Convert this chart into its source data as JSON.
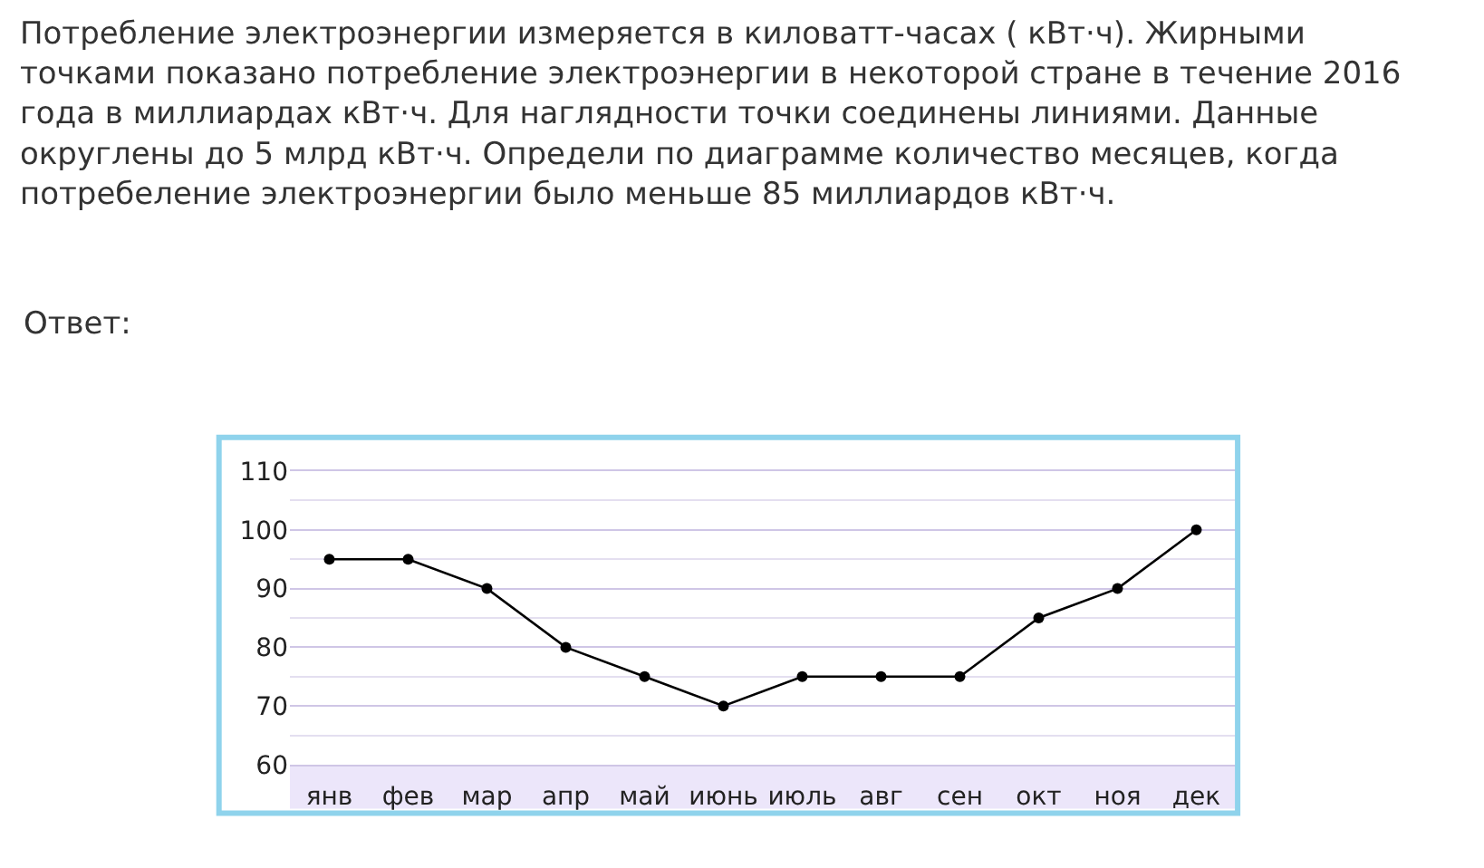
{
  "chart_data": {
    "type": "line",
    "title": "Потребление электроэнергии измеряется в киловатт-часах ( кВт·ч). Жирными\nточками показано потребление электроэнергии в некоторой стране в течение 2016\nгода в миллиардах кВт·ч. Для наглядности точки соединены линиями. Данные\nокруглены до 5 млрд кВт·ч. Определи по диаграмме количество месяцев, когда\nпотребеление электроэнергии было меньше 85 миллиардов кВт·ч.",
    "annotations": [
      "Ответ:"
    ],
    "categories": [
      "янв",
      "фев",
      "мар",
      "апр",
      "май",
      "июнь",
      "июль",
      "авг",
      "сен",
      "окт",
      "ноя",
      "дек"
    ],
    "series": [
      {
        "color": "#000000",
        "values": [
          95,
          95,
          90,
          80,
          75,
          70,
          75,
          75,
          75,
          85,
          90,
          100
        ]
      }
    ],
    "ylim": [
      60,
      110
    ],
    "yticks": [
      60,
      {
        "value": 65,
        "label": null
      },
      70,
      {
        "value": 75,
        "label": null
      },
      80,
      {
        "value": 85,
        "label": null
      },
      90,
      {
        "value": 95,
        "label": null
      },
      100,
      {
        "value": 105,
        "label": null
      },
      110
    ],
    "grid": "y",
    "marker": "circle",
    "line_style": "solid",
    "legend": false
  }
}
